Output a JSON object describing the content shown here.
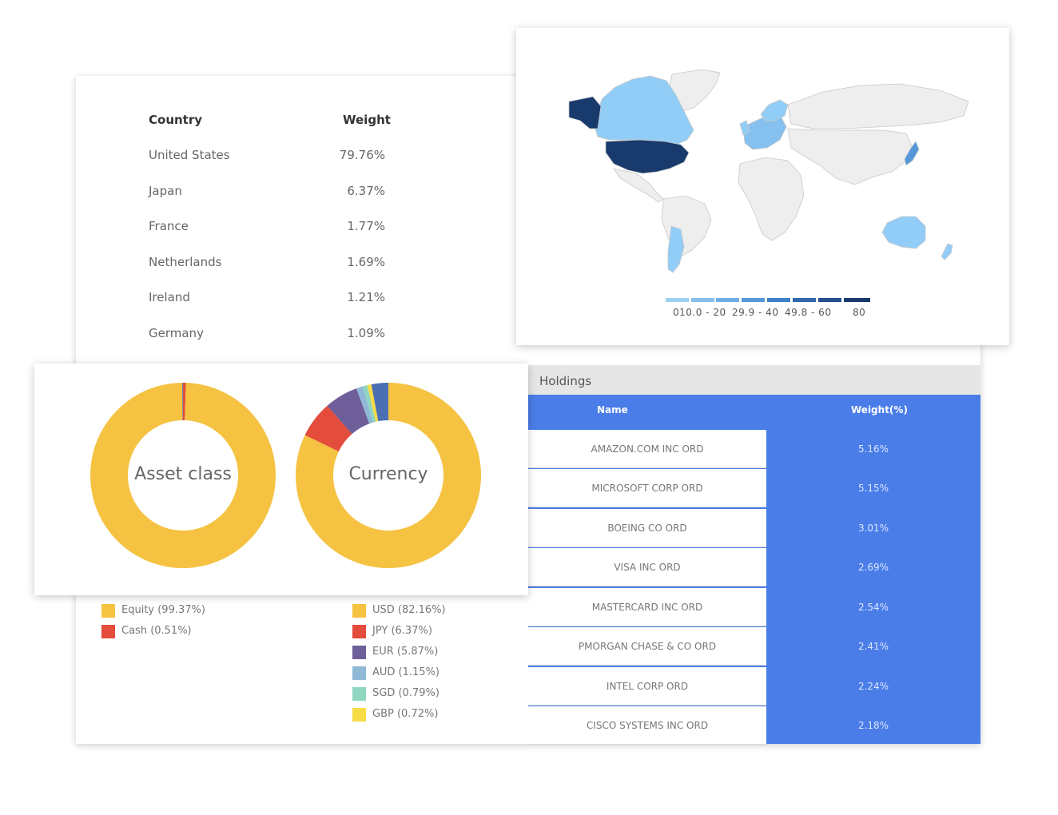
{
  "country_table": {
    "headers": {
      "country": "Country",
      "weight": "Weight"
    },
    "rows": [
      {
        "country": "United States",
        "weight": "79.76%"
      },
      {
        "country": "Japan",
        "weight": "6.37%"
      },
      {
        "country": "France",
        "weight": "1.77%"
      },
      {
        "country": "Netherlands",
        "weight": "1.69%"
      },
      {
        "country": "Ireland",
        "weight": "1.21%"
      },
      {
        "country": "Germany",
        "weight": "1.09%"
      }
    ]
  },
  "map": {
    "scale_colors": [
      "#9ecff5",
      "#86c0ef",
      "#6eafe7",
      "#5598d9",
      "#3f7fc6",
      "#2f66ad",
      "#234f8f",
      "#183a6c"
    ],
    "scale_labels": {
      "a": "010.0 - 20",
      "b": "29.9 - 40",
      "c": "49.8 - 60",
      "d": "80"
    },
    "land_color": "#eeeeee",
    "low_color": "#91cdf7",
    "high_color": "#183a6c"
  },
  "donuts": {
    "asset_class": {
      "label": "Asset class",
      "legend": [
        {
          "label": "Equity (99.37%)",
          "value": 99.37,
          "color": "#f5c242"
        },
        {
          "label": "Cash (0.51%)",
          "value": 0.51,
          "color": "#e44c3c"
        }
      ]
    },
    "currency": {
      "label": "Currency",
      "legend": [
        {
          "label": "USD (82.16%)",
          "value": 82.16,
          "color": "#f5c242"
        },
        {
          "label": "JPY (6.37%)",
          "value": 6.37,
          "color": "#e44c3c"
        },
        {
          "label": "EUR (5.87%)",
          "value": 5.87,
          "color": "#6e5e9a"
        },
        {
          "label": "AUD (1.15%)",
          "value": 1.15,
          "color": "#8fb9d6"
        },
        {
          "label": "SGD (0.79%)",
          "value": 0.79,
          "color": "#8fd6c0"
        },
        {
          "label": "GBP (0.72%)",
          "value": 0.72,
          "color": "#f7dc45"
        }
      ]
    }
  },
  "holdings": {
    "title": "Holdings",
    "headers": {
      "name": "Name",
      "weight": "Weight(%)"
    },
    "rows": [
      {
        "name": "AMAZON.COM INC ORD",
        "weight": "5.16%"
      },
      {
        "name": "MICROSOFT CORP ORD",
        "weight": "5.15%"
      },
      {
        "name": "BOEING CO ORD",
        "weight": "3.01%"
      },
      {
        "name": "VISA INC ORD",
        "weight": "2.69%"
      },
      {
        "name": "MASTERCARD INC ORD",
        "weight": "2.54%"
      },
      {
        "name": "PMORGAN CHASE & CO ORD",
        "weight": "2.41%"
      },
      {
        "name": "INTEL CORP ORD",
        "weight": "2.24%"
      },
      {
        "name": "CISCO SYSTEMS INC ORD",
        "weight": "2.18%"
      }
    ]
  },
  "chart_data": [
    {
      "type": "pie",
      "title": "Asset class",
      "categories": [
        "Equity",
        "Cash"
      ],
      "values": [
        99.37,
        0.51
      ]
    },
    {
      "type": "pie",
      "title": "Currency",
      "categories": [
        "USD",
        "JPY",
        "EUR",
        "AUD",
        "SGD",
        "GBP"
      ],
      "values": [
        82.16,
        6.37,
        5.87,
        1.15,
        0.79,
        0.72
      ]
    }
  ]
}
